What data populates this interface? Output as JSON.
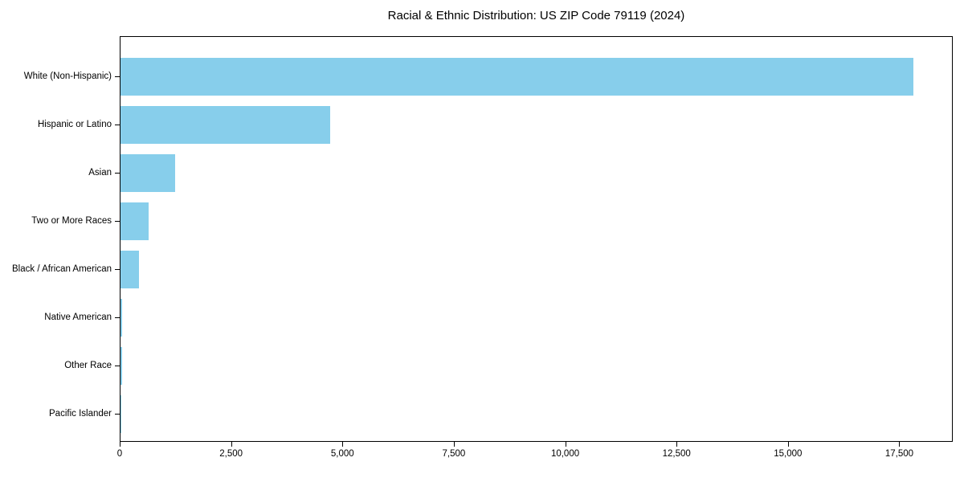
{
  "chart_data": {
    "type": "bar",
    "orientation": "horizontal",
    "title": "Racial & Ethnic Distribution: US ZIP Code 79119 (2024)",
    "categories": [
      "White (Non-Hispanic)",
      "Hispanic or Latino",
      "Asian",
      "Two or More Races",
      "Black / African American",
      "Native American",
      "Other Race",
      "Pacific Islander"
    ],
    "values": [
      17800,
      4710,
      1220,
      630,
      420,
      40,
      30,
      5
    ],
    "xlabel": "",
    "ylabel": "",
    "xlim": [
      0,
      18700
    ],
    "xticks": [
      0,
      2500,
      5000,
      7500,
      10000,
      12500,
      15000,
      17500
    ],
    "bar_color": "#87CEEB",
    "axis_color": "#000000",
    "background_color": "#ffffff",
    "grid": false,
    "legend": null
  }
}
